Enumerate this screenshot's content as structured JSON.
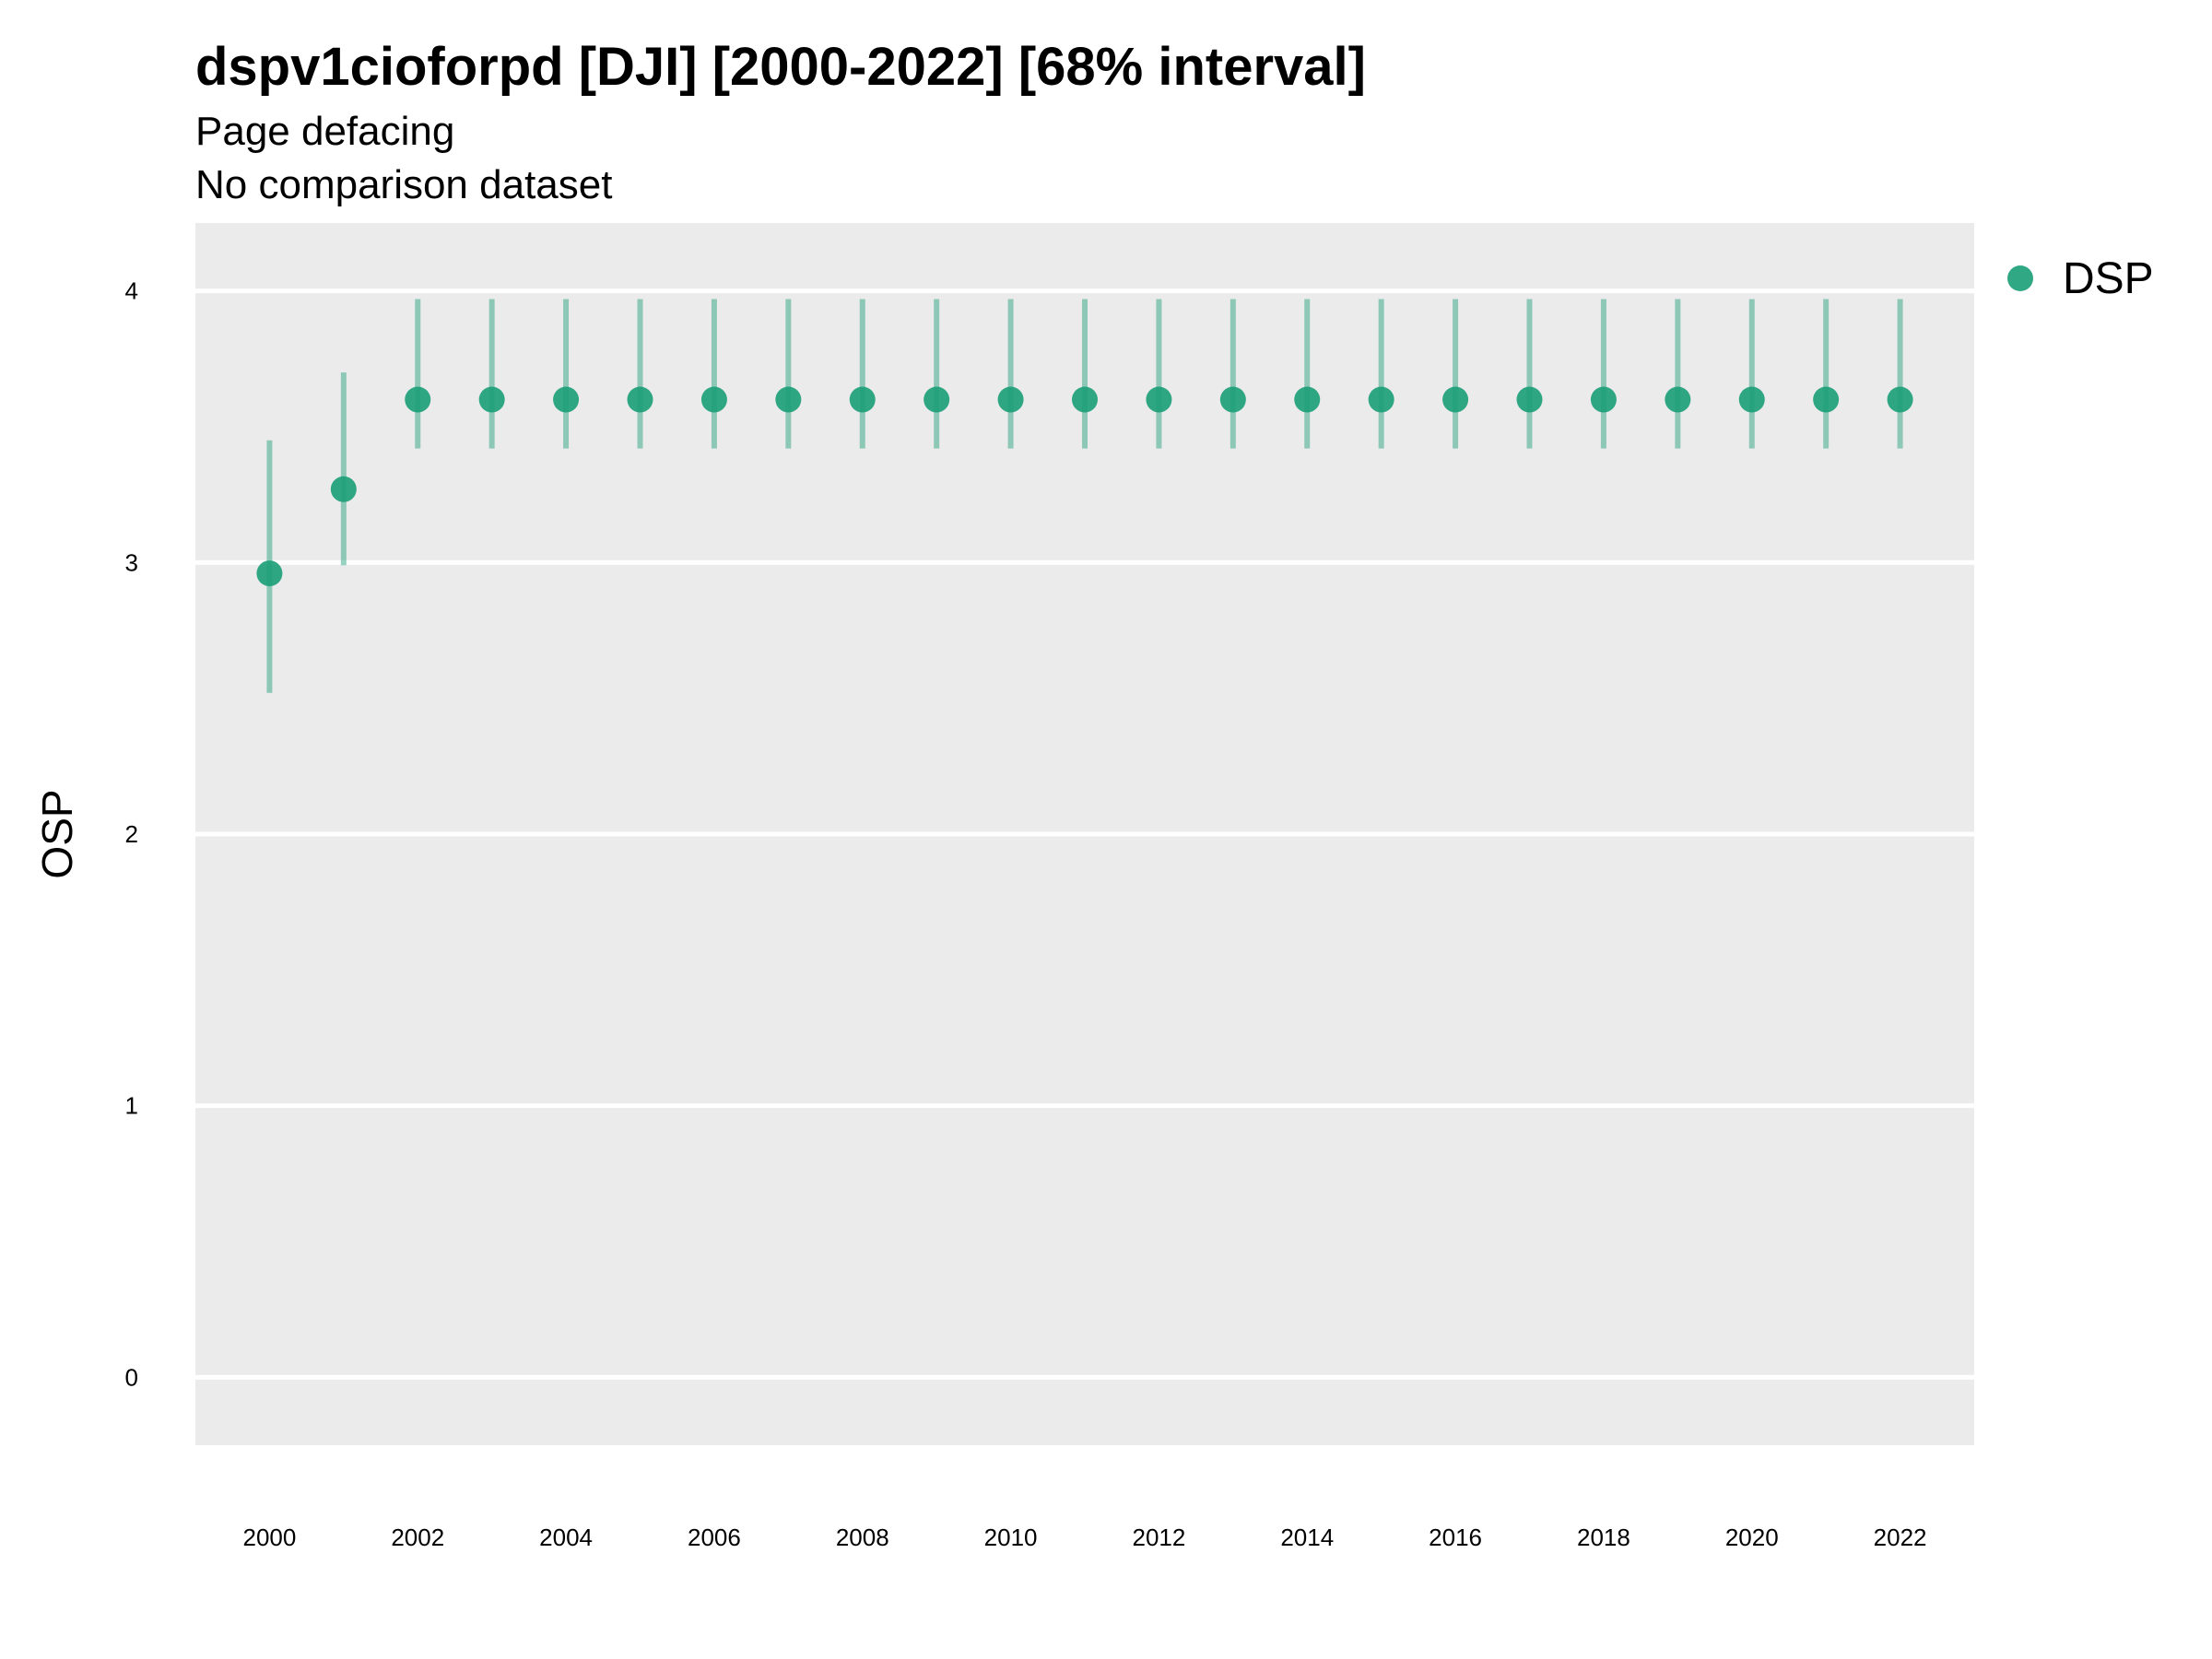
{
  "chart_data": {
    "type": "scatter",
    "title": "dspv1cioforpd [DJI] [2000-2022] [68% interval]",
    "subtitle": "Page defacing",
    "subtitle2": "No comparison dataset",
    "xlabel": "",
    "ylabel": "OSP",
    "x": [
      2000,
      2001,
      2002,
      2003,
      2004,
      2005,
      2006,
      2007,
      2008,
      2009,
      2010,
      2011,
      2012,
      2013,
      2014,
      2015,
      2016,
      2017,
      2018,
      2019,
      2020,
      2021,
      2022
    ],
    "xlim": [
      1999,
      2023
    ],
    "ylim": [
      -0.25,
      4.25
    ],
    "x_ticks": [
      2000,
      2002,
      2004,
      2006,
      2008,
      2010,
      2012,
      2014,
      2016,
      2018,
      2020,
      2022
    ],
    "x_tick_labels": [
      "2000",
      "2002",
      "2004",
      "2006",
      "2008",
      "2010",
      "2012",
      "2014",
      "2016",
      "2018",
      "2020",
      "2022"
    ],
    "y_ticks": [
      0,
      1,
      2,
      3,
      4
    ],
    "y_tick_labels": [
      "0",
      "1",
      "2",
      "3",
      "4"
    ],
    "grid": true,
    "legend_position": "top-right",
    "series": [
      {
        "name": "DSP",
        "color": "#1b9e77",
        "values": [
          2.96,
          3.27,
          3.6,
          3.6,
          3.6,
          3.6,
          3.6,
          3.6,
          3.6,
          3.6,
          3.6,
          3.6,
          3.6,
          3.6,
          3.6,
          3.6,
          3.6,
          3.6,
          3.6,
          3.6,
          3.6,
          3.6,
          3.6
        ],
        "lower": [
          2.52,
          2.99,
          3.42,
          3.42,
          3.42,
          3.42,
          3.42,
          3.42,
          3.42,
          3.42,
          3.42,
          3.42,
          3.42,
          3.42,
          3.42,
          3.42,
          3.42,
          3.42,
          3.42,
          3.42,
          3.42,
          3.42,
          3.42
        ],
        "upper": [
          3.45,
          3.7,
          3.97,
          3.97,
          3.97,
          3.97,
          3.97,
          3.97,
          3.97,
          3.97,
          3.97,
          3.97,
          3.97,
          3.97,
          3.97,
          3.97,
          3.97,
          3.97,
          3.97,
          3.97,
          3.97,
          3.97,
          3.97
        ]
      }
    ],
    "panel_color": "#ebebeb",
    "grid_color": "#ffffff"
  }
}
